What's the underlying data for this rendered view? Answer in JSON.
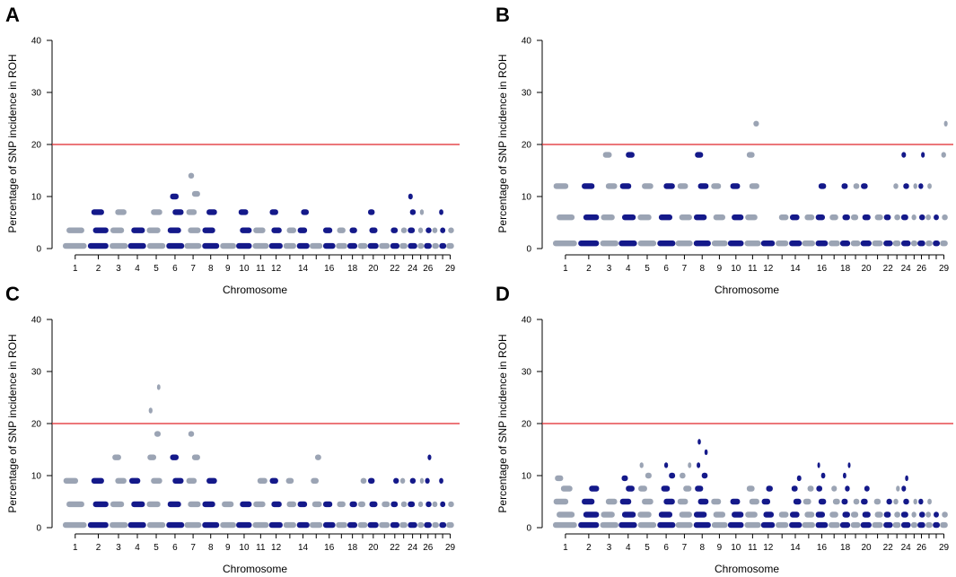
{
  "chart_data": [
    {
      "panel": "A",
      "type": "scatter",
      "xlabel": "Chromosome",
      "ylabel": "Percentage of SNP incidence in ROH",
      "ylim": [
        0,
        40
      ],
      "yticks": [
        0,
        10,
        20,
        30,
        40
      ],
      "threshold": 20,
      "chromosome_tick_labels": [
        "1",
        "2",
        "3",
        "4",
        "5",
        "6",
        "7",
        "8",
        "9",
        "10",
        "11",
        "12",
        "14",
        "16",
        "18",
        "20",
        "22",
        "24",
        "26",
        "29"
      ],
      "chromosomes": [
        {
          "chr": 1,
          "values": [
            0.5,
            3.5
          ]
        },
        {
          "chr": 2,
          "values": [
            0.5,
            3.5,
            7
          ]
        },
        {
          "chr": 3,
          "values": [
            0.5,
            3.5,
            7
          ]
        },
        {
          "chr": 4,
          "values": [
            0.5,
            3.5
          ]
        },
        {
          "chr": 5,
          "values": [
            0.5,
            3.5,
            7
          ]
        },
        {
          "chr": 6,
          "values": [
            0.5,
            3.5,
            7,
            10
          ]
        },
        {
          "chr": 7,
          "values": [
            0.5,
            3.5,
            7,
            10.5,
            14
          ]
        },
        {
          "chr": 8,
          "values": [
            0.5,
            3.5,
            7
          ]
        },
        {
          "chr": 9,
          "values": [
            0.5
          ]
        },
        {
          "chr": 10,
          "values": [
            0.5,
            3.5,
            7
          ]
        },
        {
          "chr": 11,
          "values": [
            0.5,
            3.5
          ]
        },
        {
          "chr": 12,
          "values": [
            0.5,
            3.5,
            7
          ]
        },
        {
          "chr": 13,
          "values": [
            0.5,
            3.5
          ]
        },
        {
          "chr": 14,
          "values": [
            0.5,
            3.5,
            7
          ]
        },
        {
          "chr": 15,
          "values": [
            0.5
          ]
        },
        {
          "chr": 16,
          "values": [
            0.5,
            3.5
          ]
        },
        {
          "chr": 17,
          "values": [
            0.5,
            3.5
          ]
        },
        {
          "chr": 18,
          "values": [
            0.5,
            3.5
          ]
        },
        {
          "chr": 19,
          "values": [
            0.5
          ]
        },
        {
          "chr": 20,
          "values": [
            0.5,
            3.5,
            7
          ]
        },
        {
          "chr": 21,
          "values": [
            0.5
          ]
        },
        {
          "chr": 22,
          "values": [
            0.5,
            3.5
          ]
        },
        {
          "chr": 23,
          "values": [
            0.5,
            3.5
          ]
        },
        {
          "chr": 24,
          "values": [
            0.5,
            3.5,
            7,
            10
          ]
        },
        {
          "chr": 25,
          "values": [
            0.5,
            3.5,
            7
          ]
        },
        {
          "chr": 26,
          "values": [
            0.5,
            3.5
          ]
        },
        {
          "chr": 27,
          "values": [
            0.5,
            3.5
          ]
        },
        {
          "chr": 28,
          "values": [
            0.5,
            3.5,
            7
          ]
        },
        {
          "chr": 29,
          "values": [
            0.5,
            3.5
          ]
        }
      ]
    },
    {
      "panel": "B",
      "type": "scatter",
      "xlabel": "Chromosome",
      "ylabel": "Percentage of SNP incidence in ROH",
      "ylim": [
        0,
        40
      ],
      "yticks": [
        0,
        10,
        20,
        30,
        40
      ],
      "threshold": 20,
      "chromosome_tick_labels": [
        "1",
        "2",
        "3",
        "4",
        "5",
        "6",
        "7",
        "8",
        "9",
        "10",
        "11",
        "12",
        "14",
        "16",
        "18",
        "20",
        "22",
        "24",
        "26",
        "29"
      ],
      "chromosomes": [
        {
          "chr": 1,
          "values": [
            1,
            6,
            12
          ]
        },
        {
          "chr": 2,
          "values": [
            1,
            6,
            12
          ]
        },
        {
          "chr": 3,
          "values": [
            1,
            6,
            12,
            18
          ]
        },
        {
          "chr": 4,
          "values": [
            1,
            6,
            12,
            18
          ]
        },
        {
          "chr": 5,
          "values": [
            1,
            6,
            12
          ]
        },
        {
          "chr": 6,
          "values": [
            1,
            6,
            12
          ]
        },
        {
          "chr": 7,
          "values": [
            1,
            6,
            12
          ]
        },
        {
          "chr": 8,
          "values": [
            1,
            6,
            12,
            18
          ]
        },
        {
          "chr": 9,
          "values": [
            1,
            6,
            12
          ]
        },
        {
          "chr": 10,
          "values": [
            1,
            6,
            12
          ]
        },
        {
          "chr": 11,
          "values": [
            1,
            6,
            12,
            18,
            24
          ]
        },
        {
          "chr": 12,
          "values": [
            1
          ]
        },
        {
          "chr": 13,
          "values": [
            1,
            6
          ]
        },
        {
          "chr": 14,
          "values": [
            1,
            6
          ]
        },
        {
          "chr": 15,
          "values": [
            1,
            6
          ]
        },
        {
          "chr": 16,
          "values": [
            1,
            6,
            12
          ]
        },
        {
          "chr": 17,
          "values": [
            1,
            6
          ]
        },
        {
          "chr": 18,
          "values": [
            1,
            6,
            12
          ]
        },
        {
          "chr": 19,
          "values": [
            1,
            6,
            12
          ]
        },
        {
          "chr": 20,
          "values": [
            1,
            6,
            12
          ]
        },
        {
          "chr": 21,
          "values": [
            1,
            6
          ]
        },
        {
          "chr": 22,
          "values": [
            1,
            6
          ]
        },
        {
          "chr": 23,
          "values": [
            1,
            6,
            12
          ]
        },
        {
          "chr": 24,
          "values": [
            1,
            6,
            12,
            18
          ]
        },
        {
          "chr": 25,
          "values": [
            1,
            6,
            12
          ]
        },
        {
          "chr": 26,
          "values": [
            1,
            6,
            12,
            18
          ]
        },
        {
          "chr": 27,
          "values": [
            1,
            6,
            12
          ]
        },
        {
          "chr": 28,
          "values": [
            1,
            6
          ]
        },
        {
          "chr": 29,
          "values": [
            1,
            6,
            18,
            24
          ]
        }
      ]
    },
    {
      "panel": "C",
      "type": "scatter",
      "xlabel": "Chromosome",
      "ylabel": "Percentage of SNP incidence in ROH",
      "ylim": [
        0,
        40
      ],
      "yticks": [
        0,
        10,
        20,
        30,
        40
      ],
      "threshold": 20,
      "chromosome_tick_labels": [
        "1",
        "2",
        "3",
        "4",
        "5",
        "6",
        "7",
        "8",
        "9",
        "10",
        "11",
        "12",
        "14",
        "16",
        "18",
        "20",
        "22",
        "24",
        "26",
        "29"
      ],
      "chromosomes": [
        {
          "chr": 1,
          "values": [
            0.5,
            4.5,
            9
          ]
        },
        {
          "chr": 2,
          "values": [
            0.5,
            4.5,
            9
          ]
        },
        {
          "chr": 3,
          "values": [
            0.5,
            4.5,
            9,
            13.5
          ]
        },
        {
          "chr": 4,
          "values": [
            0.5,
            4.5,
            9
          ]
        },
        {
          "chr": 5,
          "values": [
            0.5,
            4.5,
            9,
            13.5,
            18,
            22.5,
            27
          ]
        },
        {
          "chr": 6,
          "values": [
            0.5,
            4.5,
            9,
            13.5
          ]
        },
        {
          "chr": 7,
          "values": [
            0.5,
            4.5,
            9,
            13.5,
            18
          ]
        },
        {
          "chr": 8,
          "values": [
            0.5,
            4.5,
            9
          ]
        },
        {
          "chr": 9,
          "values": [
            0.5,
            4.5
          ]
        },
        {
          "chr": 10,
          "values": [
            0.5,
            4.5
          ]
        },
        {
          "chr": 11,
          "values": [
            0.5,
            4.5,
            9
          ]
        },
        {
          "chr": 12,
          "values": [
            0.5,
            4.5,
            9
          ]
        },
        {
          "chr": 13,
          "values": [
            0.5,
            4.5,
            9
          ]
        },
        {
          "chr": 14,
          "values": [
            0.5,
            4.5
          ]
        },
        {
          "chr": 15,
          "values": [
            0.5,
            4.5,
            9,
            13.5
          ]
        },
        {
          "chr": 16,
          "values": [
            0.5,
            4.5
          ]
        },
        {
          "chr": 17,
          "values": [
            0.5,
            4.5
          ]
        },
        {
          "chr": 18,
          "values": [
            0.5,
            4.5
          ]
        },
        {
          "chr": 19,
          "values": [
            0.5,
            4.5,
            9
          ]
        },
        {
          "chr": 20,
          "values": [
            0.5,
            4.5,
            9
          ]
        },
        {
          "chr": 21,
          "values": [
            0.5,
            4.5
          ]
        },
        {
          "chr": 22,
          "values": [
            0.5,
            4.5,
            9
          ]
        },
        {
          "chr": 23,
          "values": [
            0.5,
            4.5,
            9
          ]
        },
        {
          "chr": 24,
          "values": [
            0.5,
            4.5,
            9
          ]
        },
        {
          "chr": 25,
          "values": [
            0.5,
            4.5,
            9
          ]
        },
        {
          "chr": 26,
          "values": [
            0.5,
            4.5,
            9,
            13.5
          ]
        },
        {
          "chr": 27,
          "values": [
            0.5,
            4.5
          ]
        },
        {
          "chr": 28,
          "values": [
            0.5,
            4.5,
            9
          ]
        },
        {
          "chr": 29,
          "values": [
            0.5,
            4.5
          ]
        }
      ]
    },
    {
      "panel": "D",
      "type": "scatter",
      "xlabel": "Chromosome",
      "ylabel": "Percentage of SNP incidence in ROH",
      "ylim": [
        0,
        40
      ],
      "yticks": [
        0,
        10,
        20,
        30,
        40
      ],
      "threshold": 20,
      "chromosome_tick_labels": [
        "1",
        "2",
        "3",
        "4",
        "5",
        "6",
        "7",
        "8",
        "9",
        "10",
        "11",
        "12",
        "14",
        "16",
        "18",
        "20",
        "22",
        "24",
        "26",
        "29"
      ],
      "chromosomes": [
        {
          "chr": 1,
          "values": [
            0.5,
            2.5,
            5,
            7.5,
            9.5
          ]
        },
        {
          "chr": 2,
          "values": [
            0.5,
            2.5,
            5,
            7.5
          ]
        },
        {
          "chr": 3,
          "values": [
            0.5,
            2.5,
            5
          ]
        },
        {
          "chr": 4,
          "values": [
            0.5,
            2.5,
            5,
            7.5,
            9.5
          ]
        },
        {
          "chr": 5,
          "values": [
            0.5,
            2.5,
            5,
            7.5,
            10,
            12
          ]
        },
        {
          "chr": 6,
          "values": [
            0.5,
            2.5,
            5,
            7.5,
            10,
            12
          ]
        },
        {
          "chr": 7,
          "values": [
            0.5,
            2.5,
            5,
            7.5,
            10,
            12
          ]
        },
        {
          "chr": 8,
          "values": [
            0.5,
            2.5,
            5,
            7.5,
            10,
            12,
            14.5,
            16.5
          ]
        },
        {
          "chr": 9,
          "values": [
            0.5,
            2.5,
            5
          ]
        },
        {
          "chr": 10,
          "values": [
            0.5,
            2.5,
            5
          ]
        },
        {
          "chr": 11,
          "values": [
            0.5,
            2.5,
            5,
            7.5
          ]
        },
        {
          "chr": 12,
          "values": [
            0.5,
            2.5,
            5,
            7.5
          ]
        },
        {
          "chr": 13,
          "values": [
            0.5,
            2.5
          ]
        },
        {
          "chr": 14,
          "values": [
            0.5,
            2.5,
            5,
            7.5,
            9.5
          ]
        },
        {
          "chr": 15,
          "values": [
            0.5,
            2.5,
            5,
            7.5
          ]
        },
        {
          "chr": 16,
          "values": [
            0.5,
            2.5,
            5,
            7.5,
            10,
            12
          ]
        },
        {
          "chr": 17,
          "values": [
            0.5,
            2.5,
            5,
            7.5
          ]
        },
        {
          "chr": 18,
          "values": [
            0.5,
            2.5,
            5,
            7.5,
            10,
            12
          ]
        },
        {
          "chr": 19,
          "values": [
            0.5,
            2.5,
            5
          ]
        },
        {
          "chr": 20,
          "values": [
            0.5,
            2.5,
            5,
            7.5
          ]
        },
        {
          "chr": 21,
          "values": [
            0.5,
            2.5,
            5
          ]
        },
        {
          "chr": 22,
          "values": [
            0.5,
            2.5,
            5
          ]
        },
        {
          "chr": 23,
          "values": [
            0.5,
            2.5,
            5,
            7.5
          ]
        },
        {
          "chr": 24,
          "values": [
            0.5,
            2.5,
            5,
            7.5,
            9.5
          ]
        },
        {
          "chr": 25,
          "values": [
            0.5,
            2.5,
            5
          ]
        },
        {
          "chr": 26,
          "values": [
            0.5,
            2.5,
            5
          ]
        },
        {
          "chr": 27,
          "values": [
            0.5,
            2.5,
            5
          ]
        },
        {
          "chr": 28,
          "values": [
            0.5,
            2.5
          ]
        },
        {
          "chr": 29,
          "values": [
            0.5,
            2.5
          ]
        }
      ]
    }
  ],
  "colors": {
    "odd_chromosome": "#9ba4b4",
    "even_chromosome": "#14198a",
    "threshold_line": "#e0262b",
    "axis": "#000000"
  }
}
